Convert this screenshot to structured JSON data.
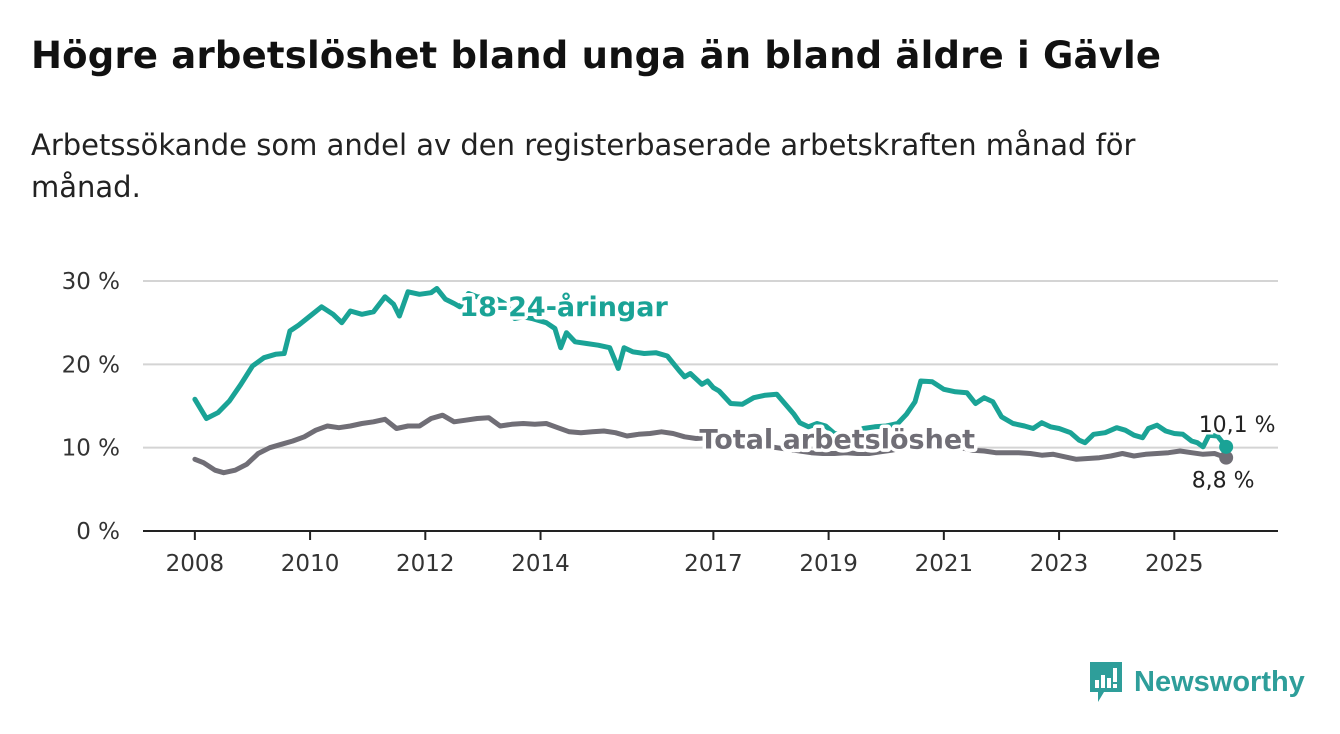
{
  "title": "Högre arbetslöshet bland unga än bland äldre i Gävle",
  "subtitle": "Arbetssökande som andel av den registerbaserade arbetskraften månad för månad.",
  "brand": {
    "name": "Newsworthy",
    "icon": "bar-chart-logo-icon",
    "color": "#2e9e9a"
  },
  "chart_data": {
    "type": "line",
    "title": "Högre arbetslöshet bland unga än bland äldre i Gävle",
    "xlabel": "",
    "ylabel": "",
    "ylim": [
      0,
      30
    ],
    "xlim": [
      2007.1,
      2026.8
    ],
    "y_ticks": [
      {
        "value": 0,
        "label": "0 %"
      },
      {
        "value": 10,
        "label": "10 %"
      },
      {
        "value": 20,
        "label": "20 %"
      },
      {
        "value": 30,
        "label": "30 %"
      }
    ],
    "x_ticks": [
      {
        "value": 2008,
        "label": "2008"
      },
      {
        "value": 2010,
        "label": "2010"
      },
      {
        "value": 2012,
        "label": "2012"
      },
      {
        "value": 2014,
        "label": "2014"
      },
      {
        "value": 2017,
        "label": "2017"
      },
      {
        "value": 2019,
        "label": "2019"
      },
      {
        "value": 2021,
        "label": "2021"
      },
      {
        "value": 2023,
        "label": "2023"
      },
      {
        "value": 2025,
        "label": "2025"
      }
    ],
    "grid": true,
    "series": [
      {
        "name": "18-24-åringar",
        "color": "#1aa396",
        "end_label": "10,1 %",
        "points": [
          [
            2008.0,
            15.8
          ],
          [
            2008.2,
            13.5
          ],
          [
            2008.4,
            14.2
          ],
          [
            2008.6,
            15.6
          ],
          [
            2008.8,
            17.6
          ],
          [
            2009.0,
            19.8
          ],
          [
            2009.2,
            20.8
          ],
          [
            2009.4,
            21.2
          ],
          [
            2009.55,
            21.3
          ],
          [
            2009.65,
            24.0
          ],
          [
            2009.8,
            24.7
          ],
          [
            2010.0,
            25.8
          ],
          [
            2010.2,
            26.9
          ],
          [
            2010.4,
            26.0
          ],
          [
            2010.55,
            25.0
          ],
          [
            2010.7,
            26.4
          ],
          [
            2010.9,
            26.0
          ],
          [
            2011.1,
            26.3
          ],
          [
            2011.3,
            28.1
          ],
          [
            2011.45,
            27.2
          ],
          [
            2011.55,
            25.8
          ],
          [
            2011.7,
            28.7
          ],
          [
            2011.9,
            28.4
          ],
          [
            2012.1,
            28.6
          ],
          [
            2012.2,
            29.1
          ],
          [
            2012.35,
            27.8
          ],
          [
            2012.5,
            27.3
          ],
          [
            2012.6,
            26.9
          ],
          [
            2012.75,
            28.5
          ],
          [
            2012.9,
            28.1
          ],
          [
            2013.1,
            28.0
          ],
          [
            2013.25,
            27.8
          ],
          [
            2013.4,
            27.2
          ],
          [
            2013.55,
            25.5
          ],
          [
            2013.7,
            25.7
          ],
          [
            2013.85,
            25.5
          ],
          [
            2014.1,
            25.0
          ],
          [
            2014.25,
            24.3
          ],
          [
            2014.35,
            22.0
          ],
          [
            2014.45,
            23.8
          ],
          [
            2014.6,
            22.7
          ],
          [
            2014.8,
            22.5
          ],
          [
            2015.0,
            22.3
          ],
          [
            2015.2,
            22.0
          ],
          [
            2015.35,
            19.5
          ],
          [
            2015.45,
            22.0
          ],
          [
            2015.6,
            21.5
          ],
          [
            2015.8,
            21.3
          ],
          [
            2016.0,
            21.4
          ],
          [
            2016.2,
            21.0
          ],
          [
            2016.4,
            19.3
          ],
          [
            2016.5,
            18.5
          ],
          [
            2016.6,
            18.9
          ],
          [
            2016.8,
            17.6
          ],
          [
            2016.9,
            18.0
          ],
          [
            2017.0,
            17.2
          ],
          [
            2017.1,
            16.8
          ],
          [
            2017.3,
            15.3
          ],
          [
            2017.5,
            15.2
          ],
          [
            2017.7,
            16.0
          ],
          [
            2017.9,
            16.3
          ],
          [
            2018.1,
            16.4
          ],
          [
            2018.25,
            15.2
          ],
          [
            2018.4,
            14.0
          ],
          [
            2018.5,
            13.0
          ],
          [
            2018.65,
            12.5
          ],
          [
            2018.8,
            12.9
          ],
          [
            2018.95,
            12.6
          ],
          [
            2019.1,
            11.7
          ],
          [
            2019.3,
            11.5
          ],
          [
            2019.45,
            11.7
          ],
          [
            2019.6,
            12.3
          ],
          [
            2019.8,
            12.5
          ],
          [
            2020.0,
            12.6
          ],
          [
            2020.2,
            12.9
          ],
          [
            2020.35,
            14.0
          ],
          [
            2020.5,
            15.5
          ],
          [
            2020.6,
            18.0
          ],
          [
            2020.8,
            17.9
          ],
          [
            2021.0,
            17.0
          ],
          [
            2021.2,
            16.7
          ],
          [
            2021.4,
            16.6
          ],
          [
            2021.55,
            15.3
          ],
          [
            2021.7,
            16.0
          ],
          [
            2021.85,
            15.5
          ],
          [
            2022.0,
            13.7
          ],
          [
            2022.2,
            12.9
          ],
          [
            2022.4,
            12.6
          ],
          [
            2022.55,
            12.3
          ],
          [
            2022.7,
            13.0
          ],
          [
            2022.85,
            12.5
          ],
          [
            2023.0,
            12.3
          ],
          [
            2023.2,
            11.8
          ],
          [
            2023.35,
            10.9
          ],
          [
            2023.45,
            10.6
          ],
          [
            2023.6,
            11.6
          ],
          [
            2023.8,
            11.8
          ],
          [
            2024.0,
            12.4
          ],
          [
            2024.15,
            12.1
          ],
          [
            2024.3,
            11.5
          ],
          [
            2024.45,
            11.2
          ],
          [
            2024.55,
            12.3
          ],
          [
            2024.7,
            12.7
          ],
          [
            2024.85,
            12.0
          ],
          [
            2025.0,
            11.7
          ],
          [
            2025.15,
            11.6
          ],
          [
            2025.3,
            10.8
          ],
          [
            2025.4,
            10.6
          ],
          [
            2025.5,
            10.1
          ],
          [
            2025.6,
            11.5
          ],
          [
            2025.75,
            11.4
          ],
          [
            2025.9,
            10.1
          ]
        ]
      },
      {
        "name": "Total arbetslöshet",
        "color": "#706e76",
        "end_label": "8,8 %",
        "points": [
          [
            2008.0,
            8.6
          ],
          [
            2008.15,
            8.2
          ],
          [
            2008.35,
            7.3
          ],
          [
            2008.5,
            7.0
          ],
          [
            2008.7,
            7.3
          ],
          [
            2008.9,
            8.0
          ],
          [
            2009.1,
            9.3
          ],
          [
            2009.3,
            10.0
          ],
          [
            2009.5,
            10.4
          ],
          [
            2009.7,
            10.8
          ],
          [
            2009.9,
            11.3
          ],
          [
            2010.1,
            12.1
          ],
          [
            2010.3,
            12.6
          ],
          [
            2010.5,
            12.4
          ],
          [
            2010.7,
            12.6
          ],
          [
            2010.9,
            12.9
          ],
          [
            2011.1,
            13.1
          ],
          [
            2011.3,
            13.4
          ],
          [
            2011.5,
            12.3
          ],
          [
            2011.7,
            12.6
          ],
          [
            2011.9,
            12.6
          ],
          [
            2012.1,
            13.5
          ],
          [
            2012.3,
            13.9
          ],
          [
            2012.5,
            13.1
          ],
          [
            2012.7,
            13.3
          ],
          [
            2012.9,
            13.5
          ],
          [
            2013.1,
            13.6
          ],
          [
            2013.3,
            12.6
          ],
          [
            2013.5,
            12.8
          ],
          [
            2013.7,
            12.9
          ],
          [
            2013.9,
            12.8
          ],
          [
            2014.1,
            12.9
          ],
          [
            2014.3,
            12.4
          ],
          [
            2014.5,
            11.9
          ],
          [
            2014.7,
            11.8
          ],
          [
            2014.9,
            11.9
          ],
          [
            2015.1,
            12.0
          ],
          [
            2015.3,
            11.8
          ],
          [
            2015.5,
            11.4
          ],
          [
            2015.7,
            11.6
          ],
          [
            2015.9,
            11.7
          ],
          [
            2016.1,
            11.9
          ],
          [
            2016.3,
            11.7
          ],
          [
            2016.5,
            11.3
          ],
          [
            2016.7,
            11.1
          ],
          [
            2016.9,
            11.2
          ],
          [
            2017.1,
            11.3
          ],
          [
            2017.3,
            10.9
          ],
          [
            2017.5,
            10.6
          ],
          [
            2017.7,
            10.4
          ],
          [
            2017.9,
            10.2
          ],
          [
            2018.1,
            10.0
          ],
          [
            2018.3,
            9.8
          ],
          [
            2018.5,
            9.6
          ],
          [
            2018.7,
            9.4
          ],
          [
            2018.9,
            9.3
          ],
          [
            2019.1,
            9.3
          ],
          [
            2019.3,
            9.4
          ],
          [
            2019.5,
            9.3
          ],
          [
            2019.7,
            9.3
          ],
          [
            2019.9,
            9.5
          ],
          [
            2020.1,
            9.7
          ],
          [
            2020.3,
            10.0
          ],
          [
            2020.5,
            10.5
          ],
          [
            2020.7,
            10.7
          ],
          [
            2020.9,
            10.4
          ],
          [
            2021.1,
            10.2
          ],
          [
            2021.3,
            10.0
          ],
          [
            2021.5,
            9.7
          ],
          [
            2021.7,
            9.6
          ],
          [
            2021.9,
            9.4
          ],
          [
            2022.1,
            9.4
          ],
          [
            2022.3,
            9.4
          ],
          [
            2022.5,
            9.3
          ],
          [
            2022.7,
            9.1
          ],
          [
            2022.9,
            9.2
          ],
          [
            2023.1,
            8.9
          ],
          [
            2023.3,
            8.6
          ],
          [
            2023.5,
            8.7
          ],
          [
            2023.7,
            8.8
          ],
          [
            2023.9,
            9.0
          ],
          [
            2024.1,
            9.3
          ],
          [
            2024.3,
            9.0
          ],
          [
            2024.5,
            9.2
          ],
          [
            2024.7,
            9.3
          ],
          [
            2024.9,
            9.4
          ],
          [
            2025.1,
            9.6
          ],
          [
            2025.3,
            9.4
          ],
          [
            2025.5,
            9.2
          ],
          [
            2025.7,
            9.3
          ],
          [
            2025.9,
            8.8
          ]
        ]
      }
    ],
    "annotations": [
      {
        "text": "18-24-åringar",
        "series": "18-24-åringar",
        "x": 2014.4,
        "y": 25.8
      },
      {
        "text": "Total arbetslöshet",
        "series": "Total arbetslöshet",
        "x": 2019.15,
        "y": 9.9
      }
    ]
  }
}
